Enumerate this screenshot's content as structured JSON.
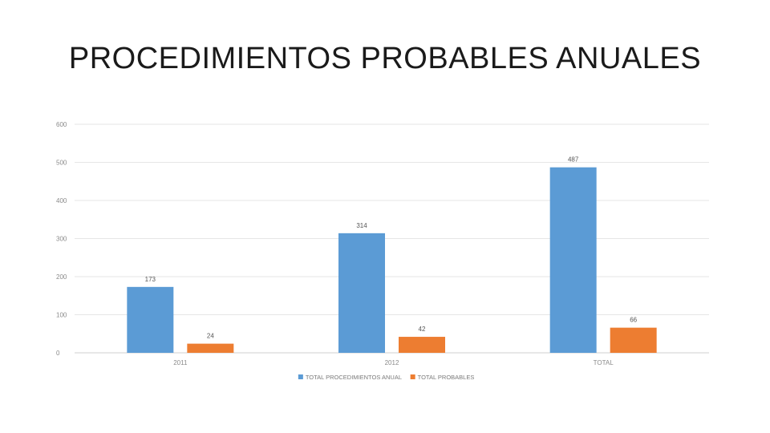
{
  "slide": {
    "title": "PROCEDIMIENTOS PROBABLES ANUALES"
  },
  "chart_data": {
    "type": "bar",
    "title": "",
    "xlabel": "",
    "ylabel": "",
    "categories": [
      "2011",
      "2012",
      "TOTAL"
    ],
    "series": [
      {
        "name": "TOTAL PROCEDIMIENTOS ANUAL",
        "color": "#5b9bd5",
        "values": [
          173,
          314,
          487
        ]
      },
      {
        "name": "TOTAL PROBABLES",
        "color": "#ed7d31",
        "values": [
          24,
          42,
          66
        ]
      }
    ],
    "ylim": [
      0,
      600
    ],
    "yticks": [
      0,
      100,
      200,
      300,
      400,
      500,
      600
    ],
    "grid": true,
    "legend": "bottom",
    "data_labels": true
  }
}
